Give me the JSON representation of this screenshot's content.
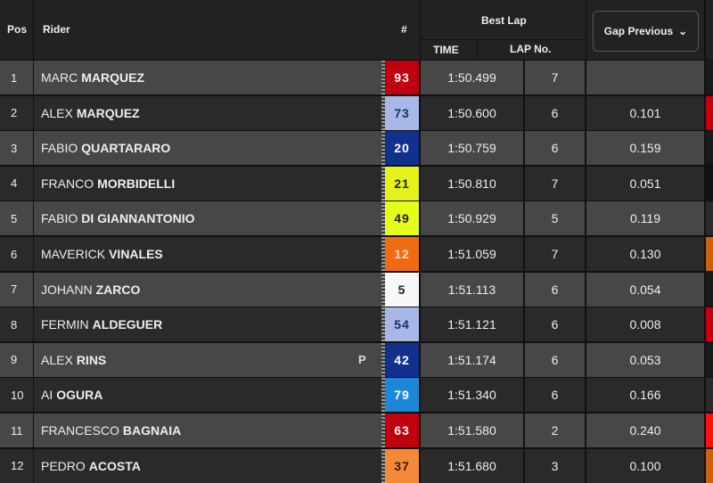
{
  "header": {
    "pos": "Pos",
    "rider": "Rider",
    "number": "#",
    "best_lap": "Best Lap",
    "time": "TIME",
    "lap_no": "LAP No.",
    "gap_dropdown": "Gap Previous",
    "gap_icon": "chevron-down-icon"
  },
  "row_colors": {
    "light": "#474747",
    "dark": "#2a2a2a"
  },
  "rows": [
    {
      "pos": "1",
      "first": "MARC",
      "last": "MARQUEZ",
      "number": "93",
      "bg": "#c0000e",
      "fg": "#ffffff",
      "time": "1:50.499",
      "lap": "7",
      "gap": "",
      "strip": "#1a1a1a"
    },
    {
      "pos": "2",
      "first": "ALEX",
      "last": "MARQUEZ",
      "number": "73",
      "bg": "#a7b8e8",
      "fg": "#1d2c66",
      "time": "1:50.600",
      "lap": "6",
      "gap": "0.101",
      "strip": "#c00010"
    },
    {
      "pos": "3",
      "first": "FABIO",
      "last": "QUARTARARO",
      "number": "20",
      "bg": "#12308e",
      "fg": "#ffffff",
      "time": "1:50.759",
      "lap": "6",
      "gap": "0.159",
      "strip": "#1a1a1a"
    },
    {
      "pos": "4",
      "first": "FRANCO",
      "last": "MORBIDELLI",
      "number": "21",
      "bg": "#e4f21a",
      "fg": "#222222",
      "time": "1:50.810",
      "lap": "7",
      "gap": "0.051",
      "strip": "#111111"
    },
    {
      "pos": "5",
      "first": "FABIO",
      "last": "DI GIANNANTONIO",
      "number": "49",
      "bg": "#e6ff1a",
      "fg": "#222222",
      "time": "1:50.929",
      "lap": "5",
      "gap": "0.119",
      "strip": "#2a2a2a"
    },
    {
      "pos": "6",
      "first": "MAVERICK",
      "last": "VINALES",
      "number": "12",
      "bg": "#f06a12",
      "fg": "#ffe0c8",
      "time": "1:51.059",
      "lap": "7",
      "gap": "0.130",
      "strip": "#c86010"
    },
    {
      "pos": "7",
      "first": "JOHANN",
      "last": "ZARCO",
      "number": "5",
      "bg": "#f8f8f8",
      "fg": "#222222",
      "time": "1:51.113",
      "lap": "6",
      "gap": "0.054",
      "strip": "#1a1a1a"
    },
    {
      "pos": "8",
      "first": "FERMIN",
      "last": "ALDEGUER",
      "number": "54",
      "bg": "#a7b8e8",
      "fg": "#1d2c66",
      "time": "1:51.121",
      "lap": "6",
      "gap": "0.008",
      "strip": "#c00010"
    },
    {
      "pos": "9",
      "first": "ALEX",
      "last": "RINS",
      "number": "42",
      "bg": "#12308e",
      "fg": "#ffffff",
      "time": "1:51.174",
      "lap": "6",
      "gap": "0.053",
      "strip": "#1a1a1a",
      "pit": "P"
    },
    {
      "pos": "10",
      "first": "AI",
      "last": "OGURA",
      "number": "79",
      "bg": "#1e88d8",
      "fg": "#ffffff",
      "time": "1:51.340",
      "lap": "6",
      "gap": "0.166",
      "strip": "#2a2a2a"
    },
    {
      "pos": "11",
      "first": "FRANCESCO",
      "last": "BAGNAIA",
      "number": "63",
      "bg": "#c0000e",
      "fg": "#ffffff",
      "time": "1:51.580",
      "lap": "2",
      "gap": "0.240",
      "strip": "#ff1010"
    },
    {
      "pos": "12",
      "first": "PEDRO",
      "last": "ACOSTA",
      "number": "37",
      "bg": "#f48a38",
      "fg": "#3a1a08",
      "time": "1:51.680",
      "lap": "3",
      "gap": "0.100",
      "strip": "#c86010"
    }
  ]
}
